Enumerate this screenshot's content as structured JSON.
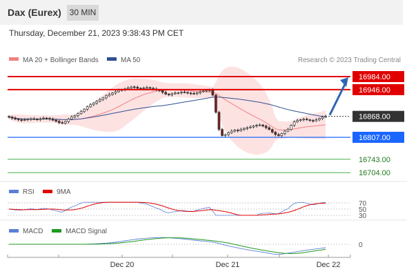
{
  "header": {
    "title": "Dax (Eurex)",
    "timeframe": "30 MIN",
    "timestamp": "Thursday, December 21, 2023 9:38:43 PM CET"
  },
  "chart_data": {
    "type": "candlestick",
    "legend": {
      "ma20_label": "MA 20 + Bollinger Bands",
      "ma50_label": "MA 50",
      "ma20_color": "#f08080",
      "ma50_color": "#2f4f8f",
      "position": "top-left"
    },
    "copyright": "Research © 2023 Trading Central",
    "ylim": [
      16680,
      17010
    ],
    "levels": [
      {
        "value": 16984.0,
        "label": "16984.00",
        "type": "resistance",
        "color": "#e00000"
      },
      {
        "value": 16946.0,
        "label": "16946.00",
        "type": "resistance",
        "color": "#e00000"
      },
      {
        "value": 16868.0,
        "label": "16868.00",
        "type": "last",
        "color": "#333333"
      },
      {
        "value": 16807.0,
        "label": "16807.00",
        "type": "pivot",
        "color": "#1a66ff"
      },
      {
        "value": 16743.0,
        "label": "16743.00",
        "type": "support",
        "color": "#1e9a1e"
      },
      {
        "value": 16704.0,
        "label": "16704.00",
        "type": "support",
        "color": "#1e9a1e"
      }
    ],
    "xticks": [
      "Dec 20",
      "Dec 21",
      "Dec 22"
    ],
    "forecast_arrow": {
      "from": 16868,
      "to": 16984,
      "direction": "up"
    },
    "closes": [
      16866,
      16863,
      16860,
      16858,
      16857,
      16858,
      16860,
      16861,
      16860,
      16859,
      16861,
      16863,
      16862,
      16860,
      16857,
      16854,
      16850,
      16848,
      16853,
      16860,
      16866,
      16870,
      16876,
      16882,
      16889,
      16896,
      16902,
      16907,
      16912,
      16917,
      16922,
      16928,
      16932,
      16936,
      16940,
      16944,
      16946,
      16948,
      16951,
      16954,
      16953,
      16950,
      16949,
      16951,
      16952,
      16950,
      16948,
      16945,
      16943,
      16938,
      16933,
      16931,
      16934,
      16936,
      16937,
      16939,
      16938,
      16936,
      16935,
      16934,
      16937,
      16940,
      16942,
      16944,
      16945,
      16930,
      16880,
      16830,
      16812,
      16815,
      16820,
      16825,
      16828,
      16826,
      16830,
      16833,
      16835,
      16837,
      16840,
      16842,
      16843,
      16840,
      16835,
      16830,
      16822,
      16815,
      16812,
      16818,
      16825,
      16830,
      16842,
      16852,
      16856,
      16858,
      16860,
      16858,
      16856,
      16855,
      16858,
      16862,
      16866,
      16868
    ],
    "rsi": {
      "levels": [
        70,
        50,
        30
      ],
      "legend": "RSI",
      "ma_legend": "9MA",
      "colors": [
        "#5b7fd6",
        "#e00000"
      ]
    },
    "macd": {
      "zero_label": "0",
      "legend": "MACD",
      "signal_legend": "MACD Signal",
      "colors": [
        "#5b7fd6",
        "#1e9a1e"
      ]
    }
  }
}
